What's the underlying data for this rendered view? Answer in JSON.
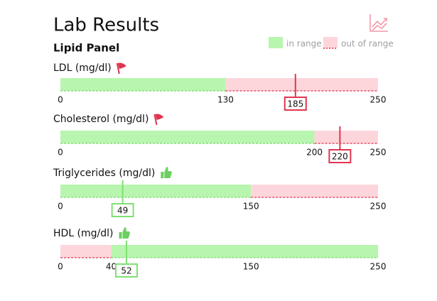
{
  "header": {
    "title": "Lab Results",
    "subtitle": "Lipid Panel"
  },
  "legend": {
    "in_range": "in range",
    "out_of_range": "out of range"
  },
  "colors": {
    "in_range": "#b8f5ae",
    "in_range_line": "#7fd874",
    "out_of_range": "#fdd6db",
    "out_of_range_line": "#e0354f"
  },
  "tests": [
    {
      "label": "LDL (mg/dl)",
      "status": "flag",
      "xlim": [
        0,
        250
      ],
      "normal": [
        0,
        130
      ],
      "xticks": [
        0,
        130,
        250
      ],
      "value": 185
    },
    {
      "label": "Cholesterol (mg/dl)",
      "status": "flag",
      "xlim": [
        0,
        250
      ],
      "normal": [
        0,
        200
      ],
      "xticks": [
        0,
        200,
        250
      ],
      "value": 220
    },
    {
      "label": "Triglycerides (mg/dl)",
      "status": "thumbs-up",
      "xlim": [
        0,
        250
      ],
      "normal": [
        0,
        150
      ],
      "xticks": [
        0,
        150,
        250
      ],
      "value": 49
    },
    {
      "label": "HDL (mg/dl)",
      "status": "thumbs-up",
      "xlim": [
        0,
        250
      ],
      "normal": [
        40,
        250
      ],
      "xticks": [
        0,
        40,
        150,
        250
      ],
      "value": 52
    }
  ]
}
